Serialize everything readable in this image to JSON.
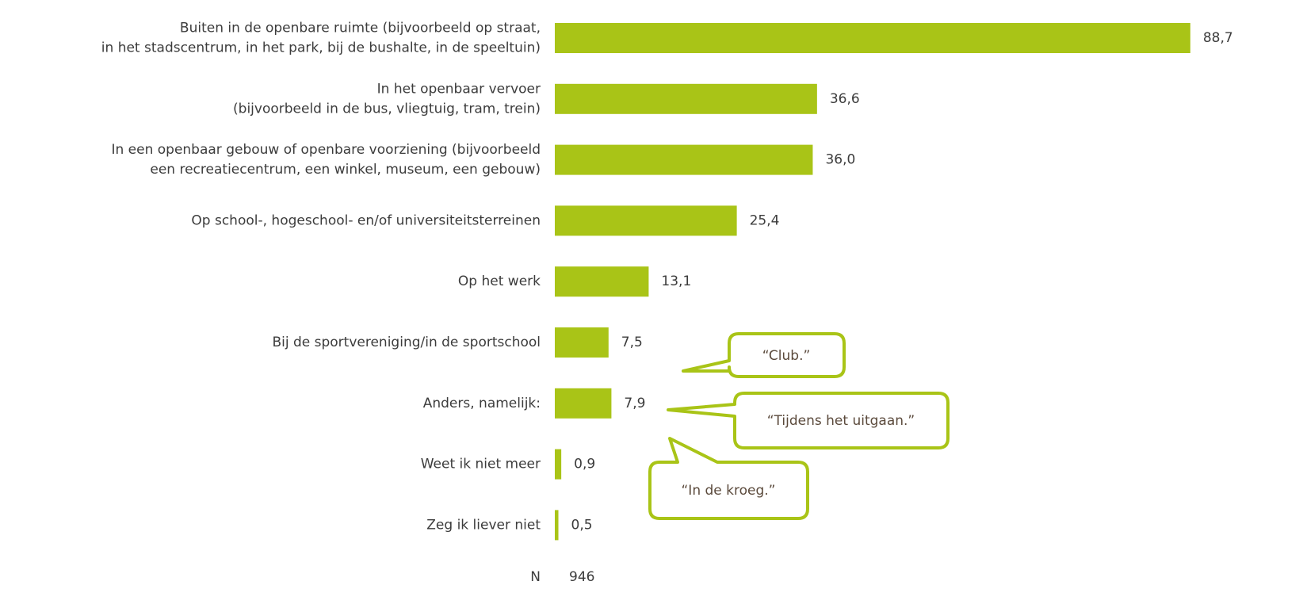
{
  "chart_data": {
    "type": "hbar",
    "categories": [
      [
        "Buiten in de openbare ruimte (bijvoorbeeld op straat,",
        "in het stadscentrum, in het park, bij de bushalte, in de speeltuin)"
      ],
      [
        "In het openbaar vervoer",
        "(bijvoorbeeld in de bus, vliegtuig, tram, trein)"
      ],
      [
        "In een openbaar gebouw of openbare voorziening (bijvoorbeeld",
        "een recreatiecentrum, een winkel, museum, een gebouw)"
      ],
      [
        "Op school-, hogeschool- en/of universiteitsterreinen"
      ],
      [
        "Op het werk"
      ],
      [
        "Bij de sportvereniging/in de sportschool"
      ],
      [
        "Anders, namelijk:"
      ],
      [
        "Weet ik niet meer"
      ],
      [
        "Zeg ik liever niet"
      ]
    ],
    "values": [
      88.7,
      36.6,
      36.0,
      25.4,
      13.1,
      7.5,
      7.9,
      0.9,
      0.5
    ],
    "value_labels": [
      "88,7",
      "36,6",
      "36,0",
      "25,4",
      "13,1",
      "7,5",
      "7,9",
      "0,9",
      "0,5"
    ],
    "color": "#a9c417",
    "annotations": [
      "“Club.”",
      "“Tijdens het uitgaan.”",
      "“In de kroeg.”"
    ],
    "n_label": "N",
    "n": 946
  }
}
